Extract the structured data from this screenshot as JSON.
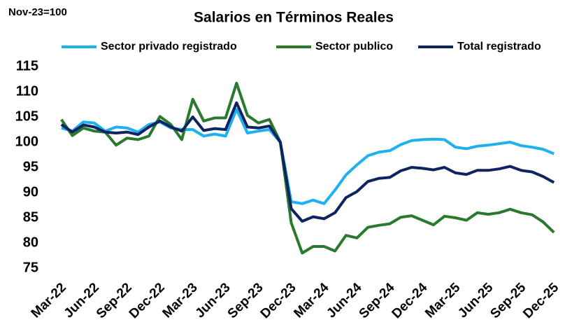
{
  "chart_data": {
    "type": "line",
    "title": "Salarios en Términos Reales",
    "subtitle": "Nov-23=100",
    "categories": [
      "Mar-22",
      null,
      null,
      "Jun-22",
      null,
      null,
      "Sep-22",
      null,
      null,
      "Dec-22",
      null,
      null,
      "Mar-23",
      null,
      null,
      "Jun-23",
      null,
      null,
      "Sep-23",
      null,
      null,
      "Dec-23",
      null,
      null,
      "Mar-24",
      null,
      null,
      "Jun-24",
      null,
      null,
      "Sep-24",
      null,
      null,
      "Dec-24",
      null,
      null,
      "Mar-25",
      null,
      null,
      "Jun-25",
      null,
      null,
      "Sep-25",
      null,
      null,
      "Dec-25"
    ],
    "series": [
      {
        "name": "Sector privado registrado",
        "color": "#1fb0ef",
        "values": [
          102.8,
          102.2,
          104,
          103.8,
          102.2,
          103,
          102.8,
          102,
          103.5,
          104,
          102.8,
          102.5,
          102.5,
          101.2,
          101.6,
          101.2,
          106.5,
          101.8,
          102.2,
          102.5,
          100,
          88.2,
          87.8,
          88.5,
          87.8,
          90.5,
          93.5,
          95.5,
          97.3,
          98,
          98.3,
          99.5,
          100.3,
          100.5,
          100.6,
          100.5,
          99,
          98.7,
          99.2,
          99.4,
          99.7,
          100,
          99.3,
          99,
          98.6,
          97.7
        ]
      },
      {
        "name": "Sector publico",
        "color": "#2a7a2e",
        "values": [
          104.5,
          101.3,
          102.8,
          102.2,
          102,
          99.4,
          100.8,
          100.5,
          101.2,
          105.1,
          103.5,
          100.5,
          108.5,
          104.2,
          104.8,
          104.8,
          111.7,
          105.3,
          103.8,
          104.5,
          100,
          84,
          78,
          79.3,
          79.3,
          78.4,
          81.5,
          81,
          83.1,
          83.5,
          83.8,
          85.1,
          85.4,
          84.5,
          83.6,
          85.3,
          85,
          84.5,
          86,
          85.7,
          86,
          86.7,
          86,
          85.6,
          84.2,
          82.1
        ]
      },
      {
        "name": "Total registrado",
        "color": "#0f2360",
        "values": [
          103.5,
          102,
          103.4,
          103,
          102,
          101.8,
          102,
          101.5,
          103,
          104.2,
          103,
          102.2,
          105,
          102.3,
          102.7,
          102.5,
          107.8,
          103,
          102.8,
          103.2,
          100,
          86.8,
          84.3,
          85.2,
          84.8,
          86,
          89,
          90.2,
          92.2,
          92.8,
          93,
          94.3,
          95,
          94.8,
          94.5,
          95,
          93.9,
          93.6,
          94.4,
          94.4,
          94.7,
          95.2,
          94.4,
          94.1,
          93.2,
          92
        ]
      }
    ],
    "ylim": [
      75,
      115
    ],
    "yticks": [
      75,
      80,
      85,
      90,
      95,
      100,
      105,
      110,
      115
    ],
    "grid": false,
    "legend": "top"
  }
}
